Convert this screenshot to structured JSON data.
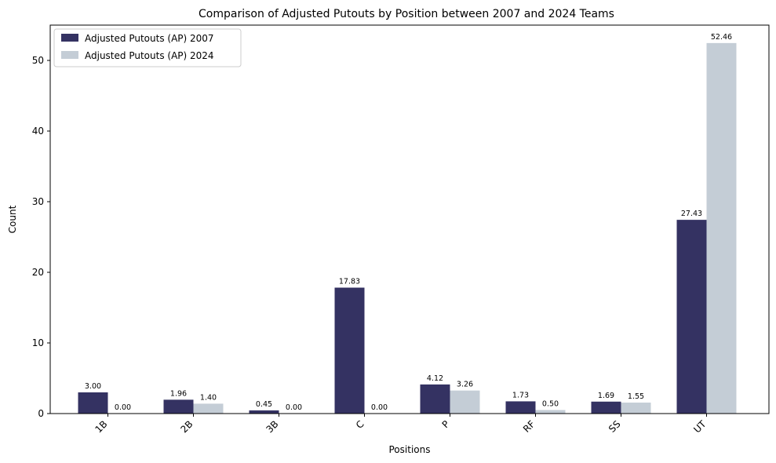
{
  "chart_data": {
    "type": "bar",
    "title": "Comparison of Adjusted Putouts by Position between 2007 and 2024 Teams",
    "xlabel": "Positions",
    "ylabel": "Count",
    "categories": [
      "1B",
      "2B",
      "3B",
      "C",
      "P",
      "RF",
      "SS",
      "UT"
    ],
    "series": [
      {
        "name": "Adjusted Putouts (AP) 2007",
        "color": "#343262",
        "values": [
          3.0,
          1.96,
          0.45,
          17.83,
          4.12,
          1.73,
          1.69,
          27.43
        ],
        "labels": [
          "3.00",
          "1.96",
          "0.45",
          "17.83",
          "4.12",
          "1.73",
          "1.69",
          "27.43"
        ]
      },
      {
        "name": "Adjusted Putouts (AP) 2024",
        "color": "#c4cdd6",
        "values": [
          0.0,
          1.4,
          0.0,
          0.0,
          3.26,
          0.5,
          1.55,
          52.46
        ],
        "labels": [
          "0.00",
          "1.40",
          "0.00",
          "0.00",
          "3.26",
          "0.50",
          "1.55",
          "52.46"
        ]
      }
    ],
    "ylim": [
      0,
      55
    ],
    "yticks": [
      0,
      10,
      20,
      30,
      40,
      50
    ],
    "legend": "top-left",
    "grid": false
  }
}
